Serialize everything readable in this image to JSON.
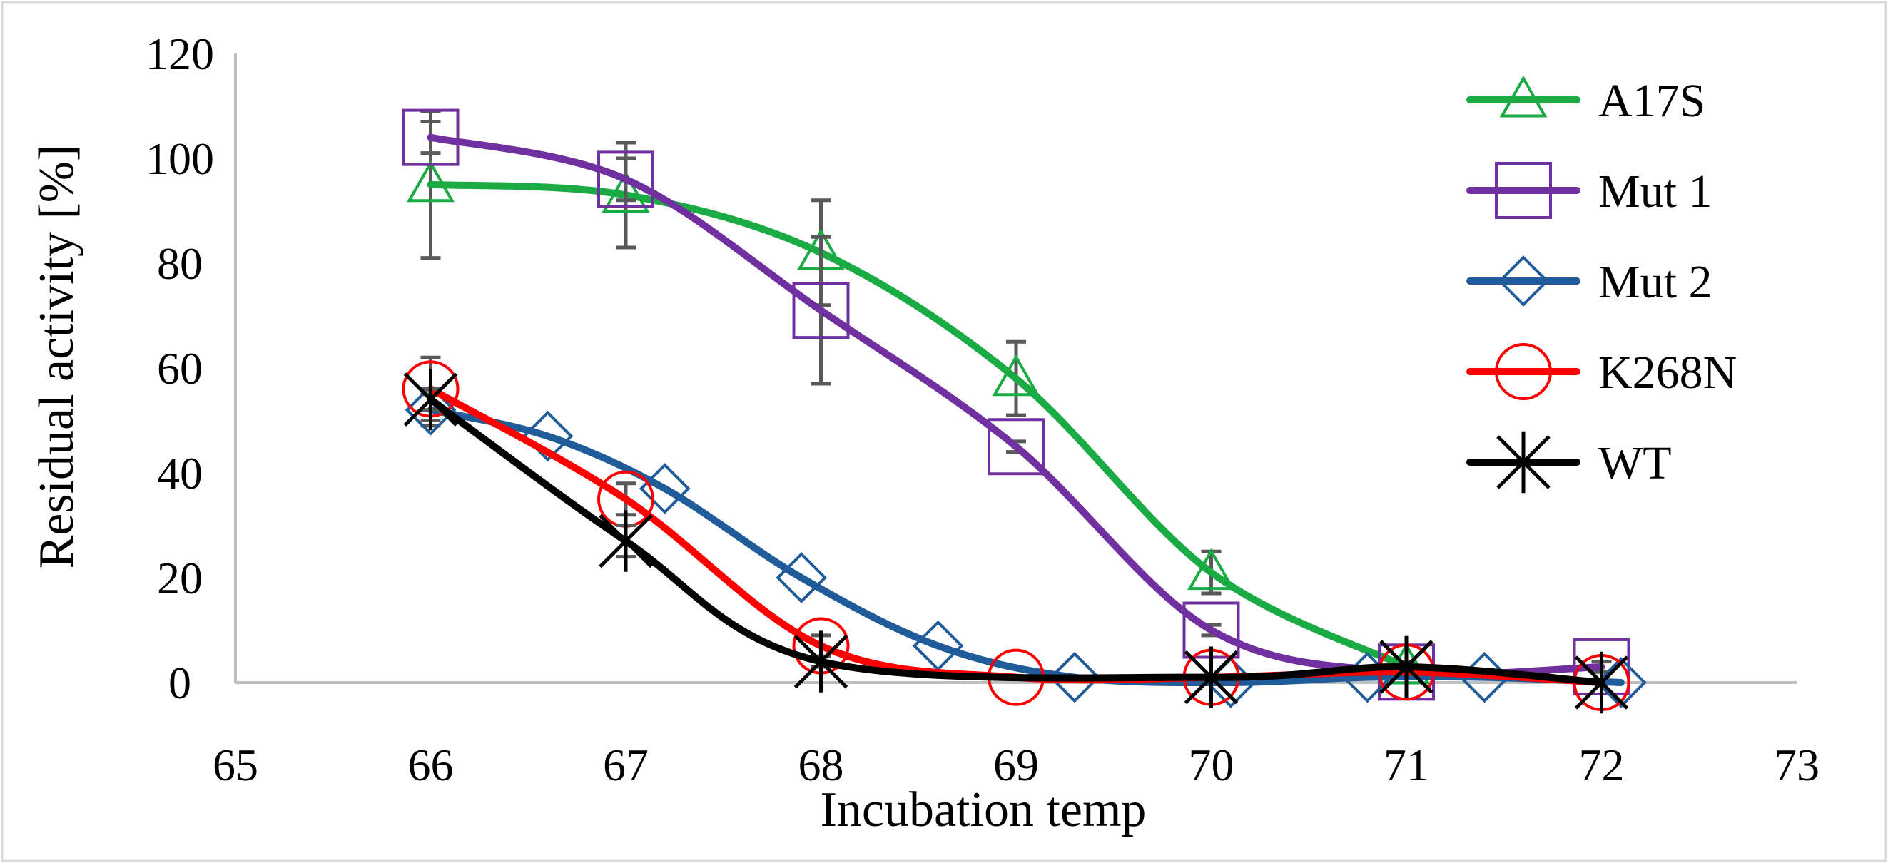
{
  "chart_data": {
    "type": "line",
    "title": "",
    "xlabel": "Incubation temp",
    "ylabel": "Residual activity [%]",
    "xlim": [
      65,
      73
    ],
    "ylim": [
      0,
      120
    ],
    "xticks": [
      "65",
      "66",
      "67",
      "68",
      "69",
      "70",
      "71",
      "72",
      "73"
    ],
    "yticks": [
      "0",
      "20",
      "40",
      "60",
      "80",
      "100",
      "120"
    ],
    "grid": false,
    "legend_position": "top-right",
    "series": [
      {
        "name": "A17S",
        "color": "#1aab45",
        "marker": "triangle",
        "x": [
          66,
          67,
          68,
          69,
          70,
          71
        ],
        "values": [
          95,
          93,
          82,
          58,
          21,
          3
        ],
        "err": [
          14,
          10,
          10,
          7,
          4,
          1
        ]
      },
      {
        "name": "Mut 1",
        "color": "#7030a0",
        "marker": "square",
        "x": [
          66,
          67,
          68,
          69,
          70,
          71,
          72
        ],
        "values": [
          104,
          96,
          71,
          45,
          10,
          2,
          3
        ],
        "err": [
          3,
          4,
          14,
          1,
          1,
          1,
          1
        ]
      },
      {
        "name": "Mut 2",
        "color": "#1f5c99",
        "marker": "diamond",
        "x": [
          66,
          66.6,
          67.2,
          67.9,
          68.6,
          69.3,
          70.1,
          70.8,
          71.4,
          72.1
        ],
        "values": [
          52,
          47,
          37,
          20,
          7,
          1,
          0,
          1,
          1,
          0
        ],
        "err": [
          3,
          0,
          0,
          0,
          0,
          0,
          0,
          0,
          0,
          0
        ]
      },
      {
        "name": "K268N",
        "color": "#ff0000",
        "marker": "circle",
        "x": [
          66,
          67,
          68,
          69,
          70,
          71,
          72
        ],
        "values": [
          56,
          35,
          7,
          1,
          1,
          2,
          0
        ],
        "err": [
          6,
          3,
          2,
          0,
          0,
          0,
          0
        ]
      },
      {
        "name": "WT",
        "color": "#000000",
        "marker": "asterisk",
        "x": [
          66,
          67,
          68,
          70,
          71,
          72
        ],
        "values": [
          54,
          27,
          4,
          1,
          3,
          0
        ],
        "err": [
          2,
          3,
          1,
          0,
          0,
          0
        ]
      }
    ]
  }
}
